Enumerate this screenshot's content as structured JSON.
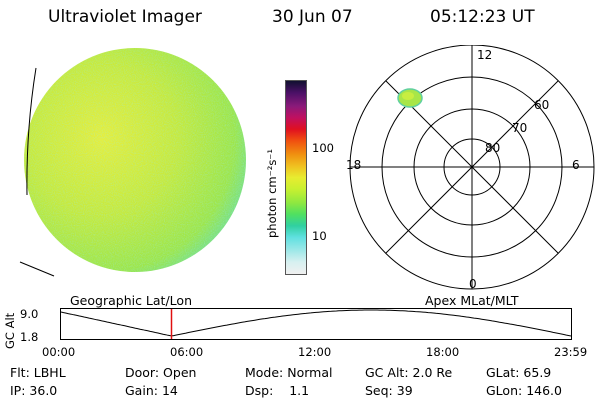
{
  "header": {
    "title": "Ultraviolet Imager",
    "date": "30 Jun 07",
    "time": "05:12:23 UT"
  },
  "colorbar": {
    "unit_label": "photon cm⁻²s⁻¹",
    "ticks": [
      "100",
      "10"
    ],
    "colors": [
      "#101030",
      "#4a1066",
      "#8a1a7a",
      "#c01060",
      "#e01020",
      "#f05010",
      "#f09010",
      "#f0c020",
      "#e8ec30",
      "#c8f030",
      "#90e840",
      "#50e060",
      "#30d0a0",
      "#60e0e0",
      "#a0e8e8",
      "#d8f0f0",
      "#f0f0f0"
    ]
  },
  "polar_plot": {
    "mlt_labels": {
      "top": "12",
      "left": "18",
      "right": "6",
      "bottom": "0"
    },
    "lat_labels": [
      "60",
      "70",
      "80"
    ]
  },
  "timeline": {
    "left_label": "Geographic Lat/Lon",
    "right_label": "Apex MLat/MLT",
    "y_axis_label": "GC Alt",
    "y_ticks": [
      "9.0",
      "1.8"
    ],
    "x_ticks": [
      "00:00",
      "06:00",
      "12:00",
      "18:00",
      "23:59"
    ],
    "marker_time_hours": 5.2
  },
  "status": {
    "row1": [
      {
        "label": "Flt:",
        "value": "LBHL"
      },
      {
        "label": "Door:",
        "value": "Open"
      },
      {
        "label": "Mode:",
        "value": "Normal"
      },
      {
        "label": "GC Alt:",
        "value": "2.0 Re"
      },
      {
        "label": "GLat:",
        "value": "65.9"
      }
    ],
    "row2": [
      {
        "label": "IP:",
        "value": "36.0"
      },
      {
        "label": "Gain:",
        "value": "14"
      },
      {
        "label": "Dsp:",
        "value": "1.1"
      },
      {
        "label": "Seq:",
        "value": "39"
      },
      {
        "label": "GLon:",
        "value": "146.0"
      }
    ]
  },
  "colors": {
    "disk_base": "#b8e63c",
    "disk_bright": "#e0ee3c",
    "disk_edge": "#5ad8c8",
    "marker": "#e01010"
  }
}
